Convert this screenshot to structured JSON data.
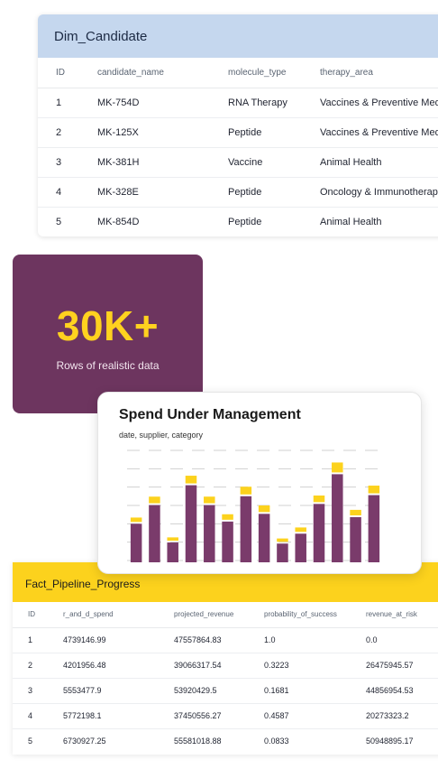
{
  "candidate_table": {
    "title": "Dim_Candidate",
    "columns": [
      "ID",
      "candidate_name",
      "molecule_type",
      "therapy_area"
    ],
    "rows": [
      [
        "1",
        "MK-754D",
        "RNA Therapy",
        "Vaccines & Preventive Medicine"
      ],
      [
        "2",
        "MK-125X",
        "Peptide",
        "Vaccines & Preventive Medicine"
      ],
      [
        "3",
        "MK-381H",
        "Vaccine",
        "Animal Health"
      ],
      [
        "4",
        "MK-328E",
        "Peptide",
        "Oncology & Immunotherapy"
      ],
      [
        "5",
        "MK-854D",
        "Peptide",
        "Animal Health"
      ]
    ],
    "header_color": "#c5d7ee"
  },
  "stat": {
    "value": "30K+",
    "label": "Rows of realistic data",
    "background": "#6d355f",
    "accent": "#ffd21f"
  },
  "chart_card": {
    "title": "Spend Under Management",
    "subtitle": "date, supplier, category"
  },
  "chart_data": {
    "type": "bar",
    "grid": true,
    "colors": {
      "bar": "#7a3b6b",
      "cap": "#fcd21d",
      "grid": "#d0d0d0"
    },
    "values": [
      35,
      52,
      18,
      70,
      52,
      37,
      60,
      44,
      17,
      26,
      53,
      80,
      41,
      61
    ],
    "caps": [
      4,
      6,
      3,
      7,
      6,
      5,
      7,
      6,
      3,
      4,
      6,
      9,
      5,
      7
    ],
    "ylim": [
      0,
      100
    ]
  },
  "pipeline_table": {
    "title": "Fact_Pipeline_Progress",
    "columns": [
      "ID",
      "r_and_d_spend",
      "projected_revenue",
      "probability_of_success",
      "revenue_at_risk"
    ],
    "rows": [
      [
        "1",
        "4739146.99",
        "47557864.83",
        "1.0",
        "0.0"
      ],
      [
        "2",
        "4201956.48",
        "39066317.54",
        "0.3223",
        "26475945.57"
      ],
      [
        "3",
        "5553477.9",
        "53920429.5",
        "0.1681",
        "44856954.53"
      ],
      [
        "4",
        "5772198.1",
        "37450556.27",
        "0.4587",
        "20273323.2"
      ],
      [
        "5",
        "6730927.25",
        "55581018.88",
        "0.0833",
        "50948895.17"
      ]
    ],
    "header_color": "#fcd21d"
  }
}
